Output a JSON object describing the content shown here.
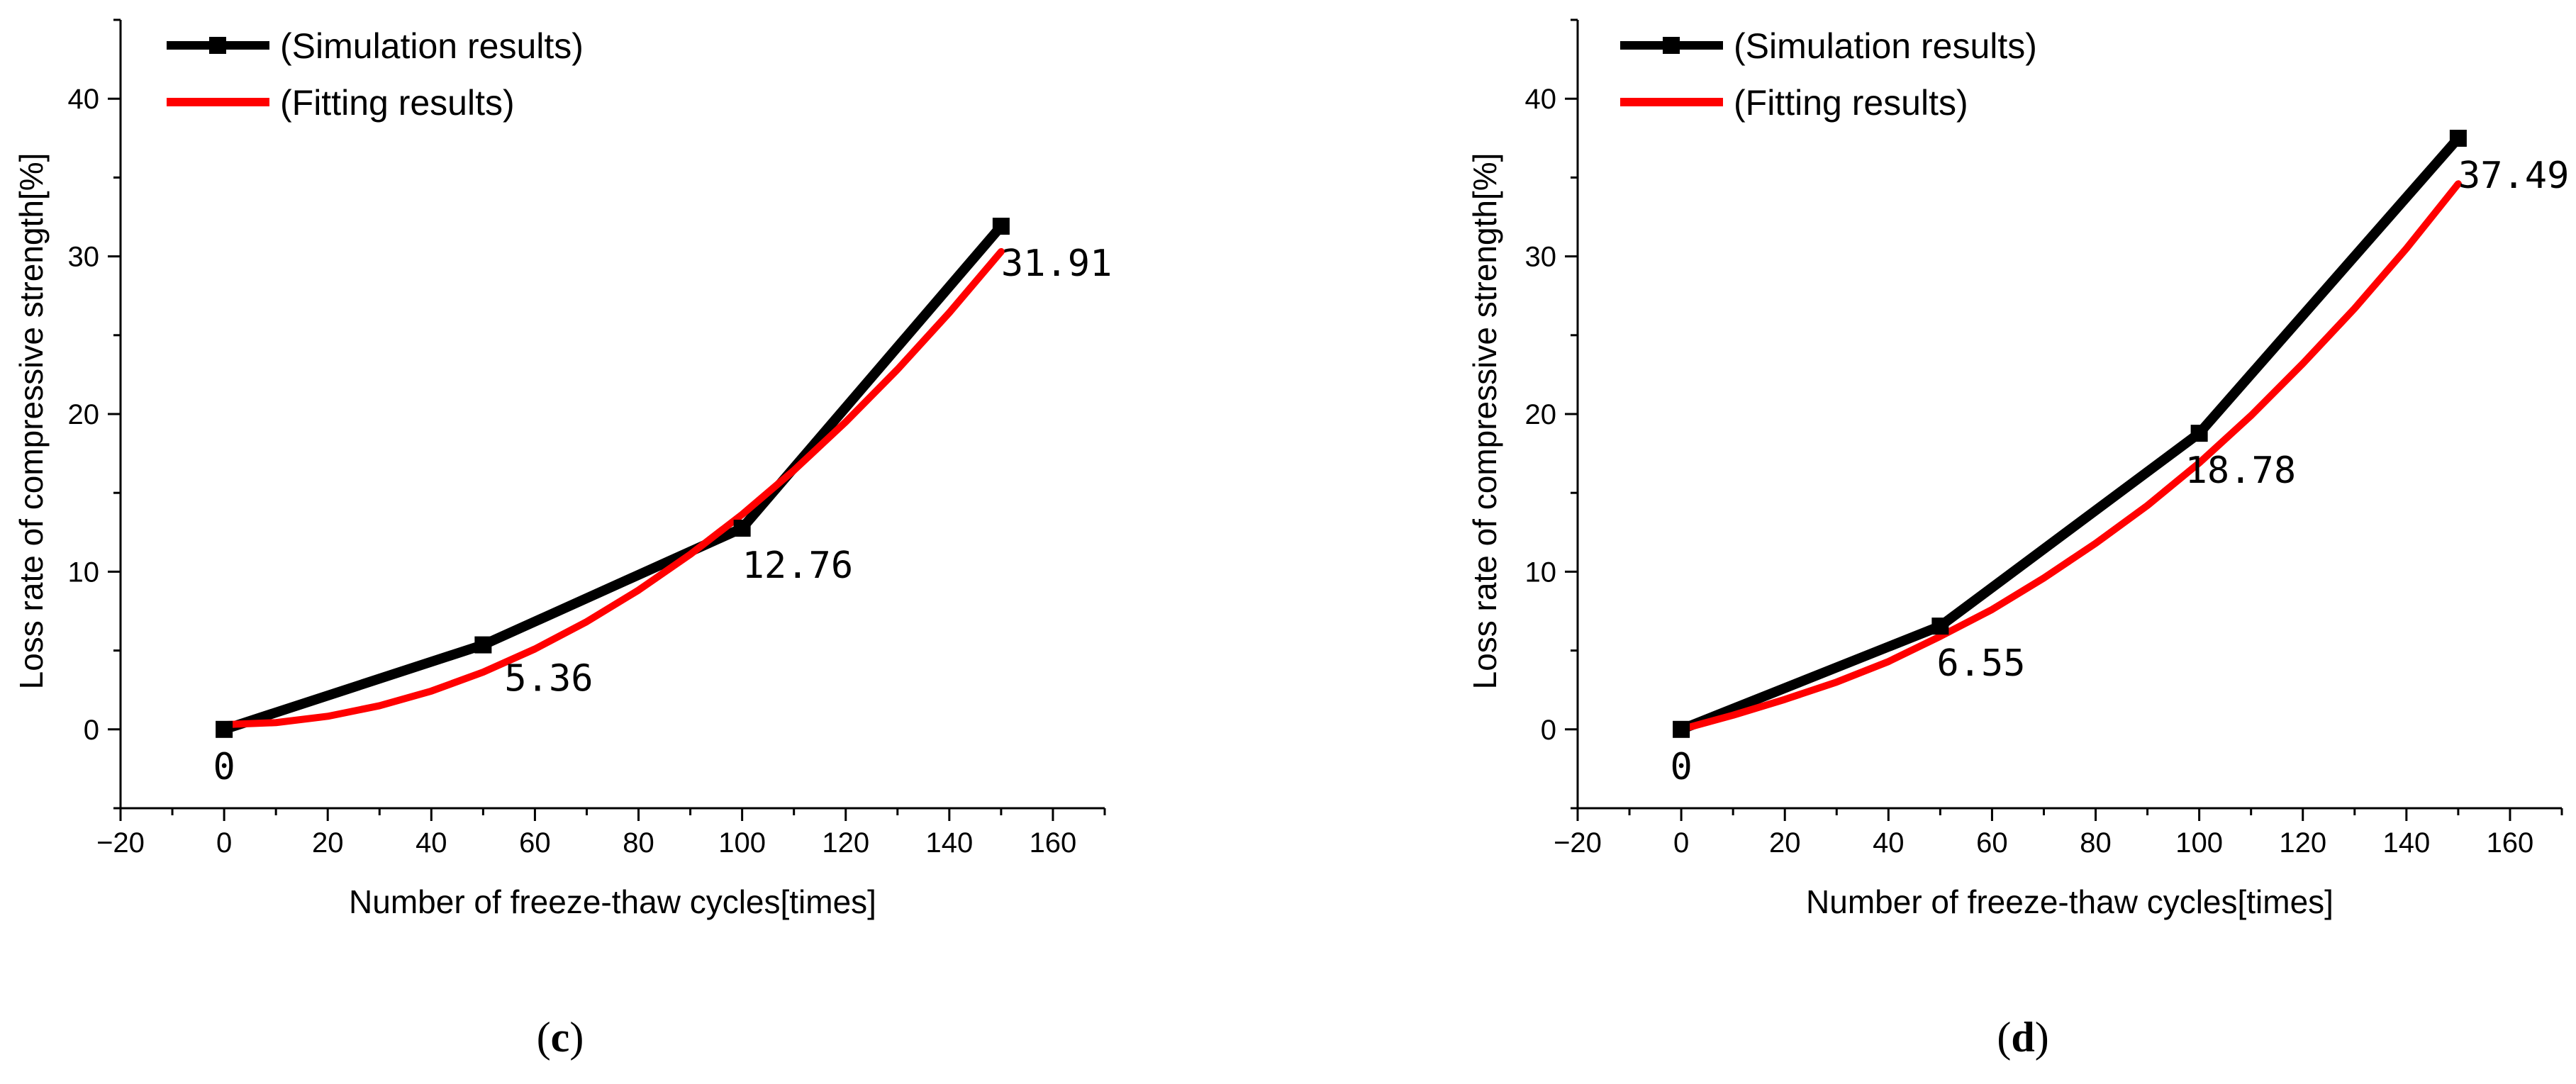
{
  "chart_data": [
    {
      "panel": "c",
      "type": "line",
      "xlabel": "Number of freeze-thaw cycles[times]",
      "ylabel": "Loss rate of compressive strength[%]",
      "xlim": [
        -20,
        170
      ],
      "ylim": [
        -5,
        45
      ],
      "xticks": [
        -20,
        0,
        20,
        40,
        60,
        80,
        100,
        120,
        140,
        160
      ],
      "xtick_labels": [
        "−20",
        "0",
        "20",
        "40",
        "60",
        "80",
        "100",
        "120",
        "140",
        "160"
      ],
      "yticks": [
        0,
        10,
        20,
        30,
        40
      ],
      "ytick_labels": [
        "0",
        "10",
        "20",
        "30",
        "40"
      ],
      "legend": [
        "(Simulation results)",
        "(Fitting results)"
      ],
      "legend_position": "top-left",
      "series": [
        {
          "name": "(Simulation results)",
          "color": "#000000",
          "marker": "square",
          "x": [
            0,
            50,
            100,
            150
          ],
          "values": [
            0,
            5.36,
            12.76,
            31.91
          ]
        },
        {
          "name": "(Fitting results)",
          "color": "#ff0000",
          "marker": "none",
          "x": [
            0,
            10,
            20,
            30,
            40,
            50,
            60,
            70,
            80,
            90,
            100,
            110,
            120,
            130,
            140,
            150
          ],
          "values": [
            0.3,
            0.43,
            0.83,
            1.5,
            2.43,
            3.63,
            5.1,
            6.83,
            8.83,
            11.1,
            13.63,
            16.43,
            19.5,
            22.83,
            26.43,
            30.3
          ]
        }
      ],
      "point_labels": [
        "0",
        "5.36",
        "12.76",
        "31.91"
      ]
    },
    {
      "panel": "d",
      "type": "line",
      "xlabel": "Number of freeze-thaw cycles[times]",
      "ylabel": "Loss rate of compressive strength[%]",
      "xlim": [
        -20,
        170
      ],
      "ylim": [
        -5,
        45
      ],
      "xticks": [
        -20,
        0,
        20,
        40,
        60,
        80,
        100,
        120,
        140,
        160
      ],
      "xtick_labels": [
        "−20",
        "0",
        "20",
        "40",
        "60",
        "80",
        "100",
        "120",
        "140",
        "160"
      ],
      "yticks": [
        0,
        10,
        20,
        30,
        40
      ],
      "ytick_labels": [
        "0",
        "10",
        "20",
        "30",
        "40"
      ],
      "legend": [
        "(Simulation results)",
        "(Fitting results)"
      ],
      "legend_position": "top-left",
      "series": [
        {
          "name": "(Simulation results)",
          "color": "#000000",
          "marker": "square",
          "x": [
            0,
            50,
            100,
            150
          ],
          "values": [
            0,
            6.55,
            18.78,
            37.49
          ]
        },
        {
          "name": "(Fitting results)",
          "color": "#ff0000",
          "marker": "none",
          "x": [
            0,
            10,
            20,
            30,
            40,
            50,
            60,
            70,
            80,
            90,
            100,
            110,
            120,
            130,
            140,
            150
          ],
          "values": [
            0.0,
            0.9,
            1.9,
            3.0,
            4.3,
            5.9,
            7.6,
            9.6,
            11.8,
            14.2,
            16.9,
            19.9,
            23.2,
            26.7,
            30.5,
            34.6
          ]
        }
      ],
      "point_labels": [
        "0",
        "6.55",
        "18.78",
        "37.49"
      ]
    }
  ]
}
